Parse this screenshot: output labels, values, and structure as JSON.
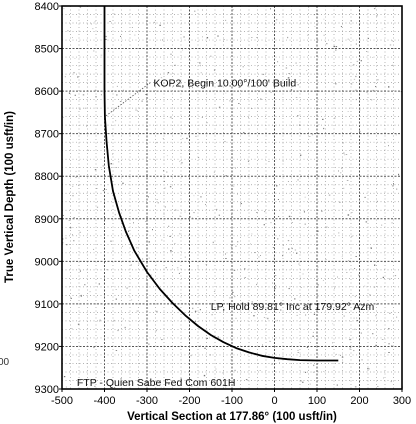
{
  "chart_data": {
    "type": "line",
    "title": "",
    "xlabel": "Vertical Section at 177.86° (100 usft/in)",
    "ylabel": "True Vertical Depth (100 usft/in)",
    "xlim": [
      -500,
      300
    ],
    "ylim": [
      9300,
      8400
    ],
    "y_inverted": true,
    "grid": true,
    "x_ticks": [
      -500,
      -400,
      -300,
      -200,
      -100,
      0,
      100,
      200,
      300
    ],
    "y_ticks": [
      8400,
      8500,
      8600,
      8700,
      8800,
      8900,
      9000,
      9100,
      9200,
      9300
    ],
    "x_tick_labels": [
      "-500",
      "-400",
      "-300",
      "-200",
      "-100",
      "0",
      "100",
      "200",
      "300"
    ],
    "y_tick_labels": [
      "8400",
      "8500",
      "8600",
      "8700",
      "8800",
      "8900",
      "9000",
      "9100",
      "9200",
      "9300"
    ],
    "series": [
      {
        "color": "#000000",
        "x": [
          -400,
          -400,
          -399,
          -395,
          -390,
          -380,
          -366,
          -350,
          -330,
          -300,
          -270,
          -240,
          -210,
          -180,
          -150,
          -120,
          -90,
          -60,
          -30,
          0,
          30,
          60,
          100,
          150
        ],
        "y": [
          8400,
          8600,
          8660,
          8720,
          8775,
          8835,
          8885,
          8930,
          8975,
          9025,
          9065,
          9098,
          9127,
          9152,
          9173,
          9190,
          9204,
          9214,
          9222,
          9227,
          9230,
          9232,
          9233,
          9233
        ]
      }
    ],
    "annotations": [
      {
        "text": "KOP2, Begin 10.00°/100' Build",
        "x": -285,
        "y": 8580
      },
      {
        "text": "LP, Hold 89.81° Inc at 179.92° Azm",
        "x": -150,
        "y": 9105
      },
      {
        "text": "FTP - Quien Sabe Fed Com 601H",
        "x": -465,
        "y": 9283
      }
    ],
    "margin_fragment": "00"
  }
}
